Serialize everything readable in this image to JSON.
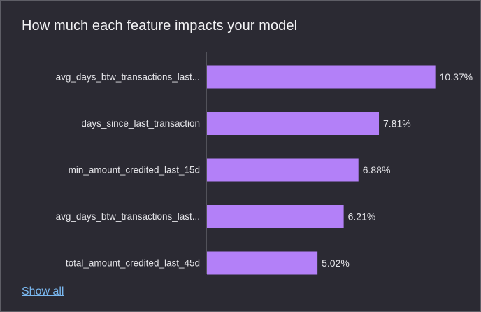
{
  "card": {
    "title": "How much each feature impacts your model",
    "show_all_label": "Show all"
  },
  "colors": {
    "background": "#2b2a33",
    "bar": "#b380f8",
    "axis": "#7a7a80",
    "label_text": "#e4e4e8",
    "link": "#7ab8f0"
  },
  "chart_data": {
    "type": "bar",
    "orientation": "horizontal",
    "categories": [
      "avg_days_btw_transactions_last...",
      "days_since_last_transaction",
      "min_amount_credited_last_15d",
      "avg_days_btw_transactions_last...",
      "total_amount_credited_last_45d"
    ],
    "values": [
      10.37,
      7.81,
      6.88,
      6.21,
      5.02
    ],
    "value_labels": [
      "10.37%",
      "7.81%",
      "6.88%",
      "6.21%",
      "5.02%"
    ],
    "unit": "%",
    "title": "",
    "xlabel": "",
    "ylabel": "",
    "grid": false,
    "legend": "none"
  }
}
